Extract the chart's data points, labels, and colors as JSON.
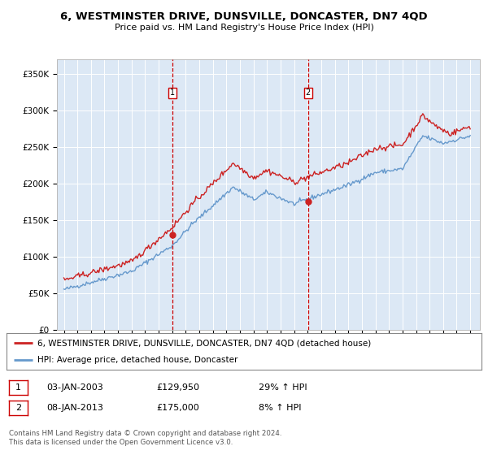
{
  "title": "6, WESTMINSTER DRIVE, DUNSVILLE, DONCASTER, DN7 4QD",
  "subtitle": "Price paid vs. HM Land Registry's House Price Index (HPI)",
  "plot_bg_color": "#dce8f5",
  "sale1": {
    "price": 129950,
    "hpi_pct": "29% ↑ HPI",
    "date_str": "03-JAN-2003",
    "year": 2003.01
  },
  "sale2": {
    "price": 175000,
    "hpi_pct": "8% ↑ HPI",
    "date_str": "08-JAN-2013",
    "year": 2013.02
  },
  "legend_line1": "6, WESTMINSTER DRIVE, DUNSVILLE, DONCASTER, DN7 4QD (detached house)",
  "legend_line2": "HPI: Average price, detached house, Doncaster",
  "footer": "Contains HM Land Registry data © Crown copyright and database right 2024.\nThis data is licensed under the Open Government Licence v3.0.",
  "hpi_color": "#6699cc",
  "price_color": "#cc2222",
  "vline_color": "#cc0000",
  "ylabel_ticks": [
    "£0",
    "£50K",
    "£100K",
    "£150K",
    "£200K",
    "£250K",
    "£300K",
    "£350K"
  ],
  "ytick_vals": [
    0,
    50000,
    100000,
    150000,
    200000,
    250000,
    300000,
    350000
  ],
  "ylim": [
    0,
    370000
  ],
  "xlim_start": 1994.5,
  "xlim_end": 2025.7,
  "hpi_anchors_x": [
    1995.0,
    2000.0,
    2003.0,
    2004.5,
    2007.5,
    2009.0,
    2010.0,
    2012.0,
    2013.5,
    2016.0,
    2018.0,
    2020.0,
    2021.5,
    2023.0,
    2025.0
  ],
  "hpi_anchors_y": [
    55000,
    80000,
    115000,
    145000,
    195000,
    178000,
    188000,
    172000,
    182000,
    198000,
    215000,
    220000,
    265000,
    255000,
    265000
  ],
  "price_anchors_x": [
    1995.0,
    2000.0,
    2003.0,
    2004.5,
    2007.5,
    2009.0,
    2010.0,
    2012.0,
    2013.5,
    2016.0,
    2018.0,
    2020.0,
    2021.5,
    2022.5,
    2023.5,
    2025.0
  ],
  "price_anchors_y": [
    68000,
    93000,
    140000,
    172000,
    228000,
    208000,
    218000,
    202000,
    212000,
    228000,
    248000,
    253000,
    293000,
    278000,
    268000,
    278000
  ],
  "sale1_price_y": 129950,
  "sale2_price_y": 175000,
  "noise_seed": 42,
  "noise_hpi": 1500,
  "noise_price": 2000
}
